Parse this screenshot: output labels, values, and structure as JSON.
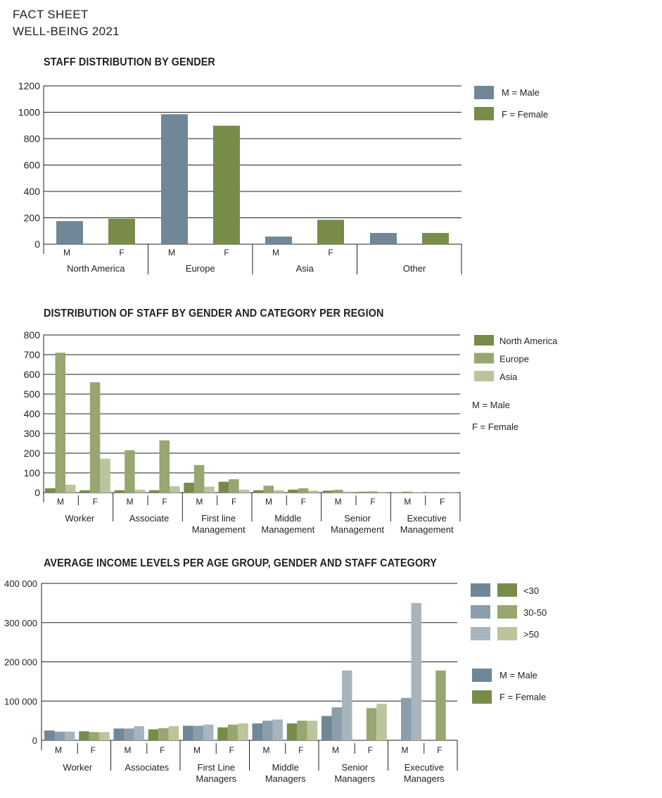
{
  "header": {
    "line1": "FACT SHEET",
    "line2": "WELL-BEING 2021"
  },
  "colors": {
    "male": "#6f8796",
    "female": "#778c49",
    "north_america": "#778c49",
    "europe": "#97a76f",
    "asia": "#bcc49c",
    "male_lt30": "#6f8796",
    "male_30_50": "#8c9eac",
    "male_gt50": "#a7b5bf",
    "female_lt30": "#778c49",
    "female_30_50": "#97a76f",
    "female_gt50": "#bcc49c"
  },
  "chart_data": [
    {
      "type": "bar",
      "title": "STAFF DISTRIBUTION BY GENDER",
      "groups": [
        "North America",
        "Europe",
        "Asia",
        "Other"
      ],
      "bar_labels": [
        "M",
        "F"
      ],
      "series": [
        {
          "name": "M = Male",
          "values": [
            175,
            985,
            58,
            85
          ]
        },
        {
          "name": "F = Female",
          "values": [
            193,
            898,
            185,
            85
          ]
        }
      ],
      "ylim": [
        0,
        1200
      ],
      "yticks": [
        "0",
        "200",
        "400",
        "600",
        "800",
        "1000",
        "1200"
      ],
      "grid": true,
      "legend_position": "right"
    },
    {
      "type": "bar",
      "title": "DISTRIBUTION OF STAFF BY GENDER AND CATEGORY PER REGION",
      "groups": [
        "Worker",
        "Associate",
        "First line\nManagement",
        "Middle\nManagement",
        "Senior\nManagement",
        "Executive\nManagement"
      ],
      "bar_labels": [
        "M",
        "F"
      ],
      "series": [
        {
          "name": "North America",
          "values": [
            [
              22,
              12
            ],
            [
              12,
              12
            ],
            [
              50,
              55
            ],
            [
              12,
              15
            ],
            [
              10,
              4
            ],
            [
              2,
              2
            ]
          ]
        },
        {
          "name": "Europe",
          "values": [
            [
              710,
              560
            ],
            [
              215,
              265
            ],
            [
              140,
              68
            ],
            [
              35,
              22
            ],
            [
              14,
              6
            ],
            [
              5,
              3
            ]
          ]
        },
        {
          "name": "Asia",
          "values": [
            [
              40,
              172
            ],
            [
              15,
              32
            ],
            [
              30,
              15
            ],
            [
              12,
              10
            ],
            [
              5,
              3
            ],
            [
              2,
              1
            ]
          ]
        }
      ],
      "ylim": [
        0,
        800
      ],
      "yticks": [
        "0",
        "100",
        "200",
        "300",
        "400",
        "500",
        "600",
        "700",
        "800"
      ],
      "grid": true,
      "legend_position": "right",
      "legend_notes": [
        "M = Male",
        "F = Female"
      ]
    },
    {
      "type": "bar",
      "title": "AVERAGE INCOME LEVELS PER AGE GROUP, GENDER AND STAFF CATEGORY",
      "groups": [
        "Worker",
        "Associates",
        "First Line\nManagers",
        "Middle\nManagers",
        "Senior\nManagers",
        "Executive\nManagers"
      ],
      "bar_labels": [
        "M",
        "F"
      ],
      "series": [
        {
          "name": "<30",
          "values": [
            [
              25000,
              23000
            ],
            [
              30000,
              28000
            ],
            [
              37000,
              33000
            ],
            [
              43000,
              43000
            ],
            [
              62000,
              0
            ],
            [
              0,
              0
            ]
          ]
        },
        {
          "name": "30-50",
          "values": [
            [
              22000,
              21000
            ],
            [
              30000,
              31000
            ],
            [
              37000,
              40000
            ],
            [
              50000,
              50000
            ],
            [
              84000,
              82000
            ],
            [
              108000,
              178000
            ]
          ]
        },
        {
          "name": ">50",
          "values": [
            [
              22000,
              21000
            ],
            [
              36000,
              36000
            ],
            [
              40000,
              43000
            ],
            [
              53000,
              50000
            ],
            [
              178000,
              93000
            ],
            [
              350000,
              0
            ]
          ]
        }
      ],
      "ylim": [
        0,
        400000
      ],
      "yticks": [
        "0",
        "100 000",
        "200 000",
        "300 000",
        "400 000"
      ],
      "grid": true,
      "legend_position": "right",
      "legend_notes": [
        "M = Male",
        "F = Female"
      ]
    }
  ]
}
